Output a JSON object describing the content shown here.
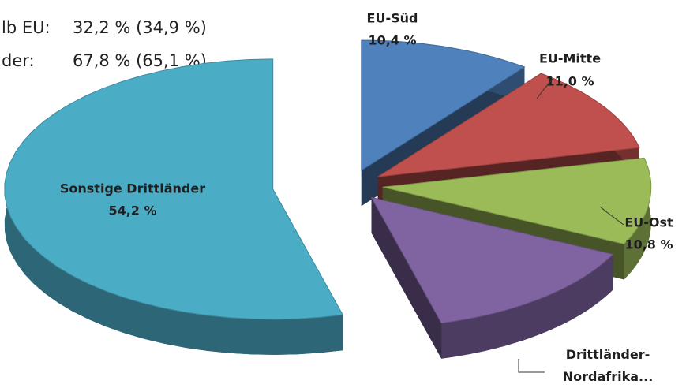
{
  "chart_data": {
    "type": "pie3d",
    "categories": [
      "EU-Süd",
      "EU-Mitte",
      "EU-Ost",
      "Drittländer-Nordafrika...",
      "Sonstige Drittländer"
    ],
    "values": [
      10.4,
      11.0,
      10.8,
      13.6,
      54.2
    ],
    "value_labels": [
      "10,4 %",
      "11,0 %",
      "10,8 %",
      null,
      "54,2 %"
    ],
    "colors": [
      "#4f81bd",
      "#c0504d",
      "#9bbb59",
      "#8064a2",
      "#4bacc6"
    ],
    "annotations": [
      {
        "label": "lb EU:",
        "text": "32,2 % (34,9 %)"
      },
      {
        "label": "der:",
        "text": "67,8 % (65,1 %)"
      }
    ]
  }
}
